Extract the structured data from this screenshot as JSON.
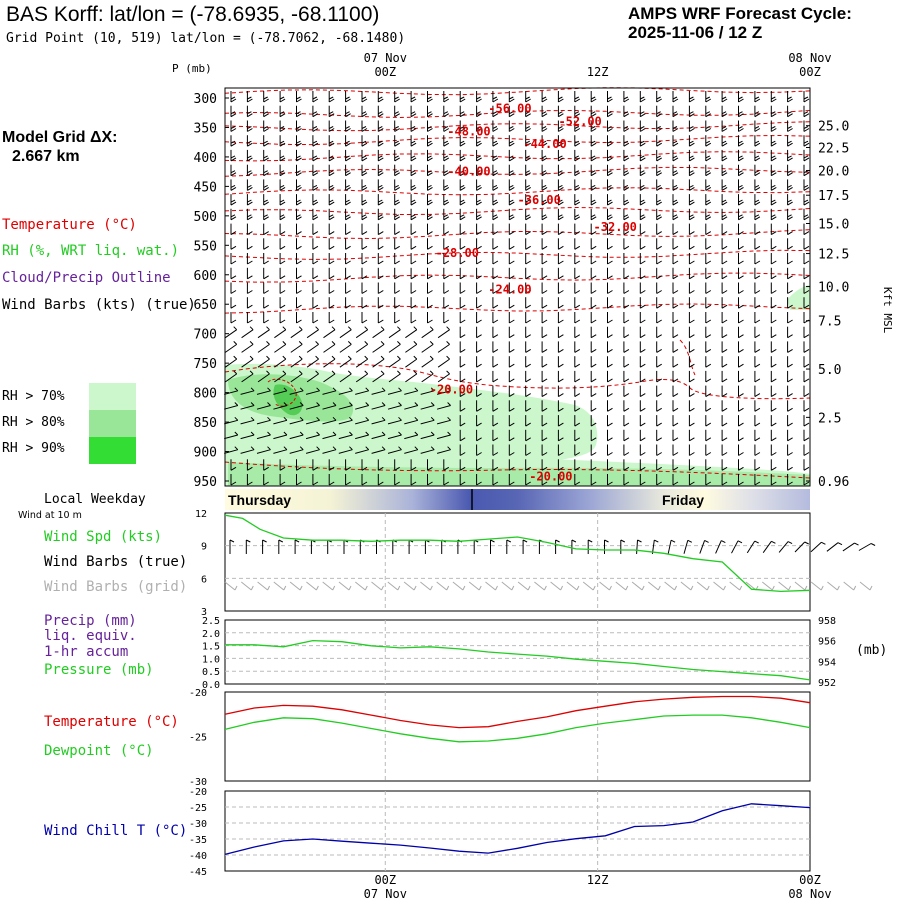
{
  "header": {
    "station_title": "BAS Korff:  lat/lon = (-78.6935, -68.1100)",
    "grid_point": "Grid Point (10, 519) lat/lon = (-78.7062, -68.1480)",
    "cycle_label": "AMPS WRF Forecast Cycle:",
    "cycle_value": "2025-11-06 / 12  Z",
    "model_grid_label": "Model Grid ΔX:",
    "model_grid_value": "2.667 km"
  },
  "time_axis": {
    "ticks": [
      {
        "top": "07 Nov",
        "bottom": "00Z",
        "frac": 0.274
      },
      {
        "top": "",
        "bottom": "12Z",
        "frac": 0.637
      },
      {
        "top": "08 Nov",
        "bottom": "00Z",
        "frac": 1.0
      }
    ],
    "day_labels": [
      "Thursday",
      "Friday"
    ],
    "local_weekday_label": "Local Weekday",
    "wind_height_label": "Wind at 10 m"
  },
  "sounding": {
    "pressure_axis_label": "P (mb)",
    "height_axis_label": "Kft MSL",
    "pressure_ticks": [
      300,
      350,
      400,
      450,
      500,
      550,
      600,
      650,
      700,
      750,
      800,
      850,
      900,
      950
    ],
    "height_ticks": [
      {
        "label": "25.0",
        "p": 347
      },
      {
        "label": "22.5",
        "p": 384
      },
      {
        "label": "20.0",
        "p": 423
      },
      {
        "label": "17.5",
        "p": 465
      },
      {
        "label": "15.0",
        "p": 513
      },
      {
        "label": "12.5",
        "p": 564
      },
      {
        "label": "10.0",
        "p": 620
      },
      {
        "label": "7.5",
        "p": 678
      },
      {
        "label": "5.0",
        "p": 760
      },
      {
        "label": "2.5",
        "p": 842
      },
      {
        "label": "0.96",
        "p": 950
      }
    ],
    "legend": {
      "temperature": "Temperature (°C)",
      "rh": "RH (%, WRT liq. wat.)",
      "cloud": "Cloud/Precip Outline",
      "wind": "Wind Barbs (kts) (true)"
    },
    "rh_legend": [
      {
        "label": "RH > 70%",
        "color": "#ccf7cc"
      },
      {
        "label": "RH > 80%",
        "color": "#99e699"
      },
      {
        "label": "RH > 90%",
        "color": "#33dd33"
      }
    ],
    "temperature_labels": [
      {
        "text": "-56.00",
        "frac": 0.45,
        "p": 318
      },
      {
        "text": "-52.00",
        "frac": 0.57,
        "p": 340
      },
      {
        "text": "-48.00",
        "frac": 0.38,
        "p": 357
      },
      {
        "text": "-44.00",
        "frac": 0.51,
        "p": 378
      },
      {
        "text": "-40.00",
        "frac": 0.38,
        "p": 425
      },
      {
        "text": "-36.00",
        "frac": 0.5,
        "p": 473
      },
      {
        "text": "-32.00",
        "frac": 0.63,
        "p": 519
      },
      {
        "text": "-28.00",
        "frac": 0.36,
        "p": 563
      },
      {
        "text": "-24.00",
        "frac": 0.45,
        "p": 625
      },
      {
        "text": "-20.00",
        "frac": 0.35,
        "p": 795
      },
      {
        "text": "-20.00",
        "frac": 0.52,
        "p": 942
      }
    ]
  },
  "panels": {
    "wind": {
      "legend_speed": "Wind Spd (kts)",
      "legend_barbs": "Wind Barbs (true)",
      "legend_grid": "Wind Barbs (grid)",
      "y_ticks": [
        "12",
        "9",
        "6",
        "3"
      ]
    },
    "precip": {
      "legend_precip": "Precip (mm)",
      "legend_liq": "liq. equiv.",
      "legend_accum": "1-hr accum",
      "legend_pressure": "Pressure (mb)",
      "y_ticks": [
        "2.5",
        "2.0",
        "1.5",
        "1.0",
        "0.5",
        "0.0"
      ],
      "right_ticks": [
        "958",
        "956",
        "954",
        "952"
      ],
      "right_unit": "(mb)"
    },
    "temp": {
      "legend_temp": "Temperature (°C)",
      "legend_dew": "Dewpoint (°C)",
      "y_ticks": [
        "-20",
        "-25",
        "-30"
      ]
    },
    "chill": {
      "legend": "Wind Chill T (°C)",
      "y_ticks": [
        "-20",
        "-25",
        "-30",
        "-35",
        "-40",
        "-45"
      ]
    }
  },
  "colors": {
    "temperature": "#dd0000",
    "dewpoint": "#22cc22",
    "wind_speed": "#22cc22",
    "pressure": "#22cc22",
    "cloud": "#662299",
    "wind_chill": "#0000aa",
    "grid_barbs": "#aaaaaa"
  },
  "chart_data": [
    {
      "type": "line",
      "name": "wind-speed",
      "x_frac": [
        0.0,
        0.03,
        0.06,
        0.1,
        0.15,
        0.2,
        0.25,
        0.3,
        0.35,
        0.4,
        0.45,
        0.5,
        0.55,
        0.6,
        0.65,
        0.7,
        0.75,
        0.8,
        0.85,
        0.9,
        0.95,
        1.0
      ],
      "values": [
        11.8,
        11.5,
        10.5,
        9.7,
        9.5,
        9.5,
        9.4,
        9.5,
        9.5,
        9.4,
        9.6,
        9.8,
        9.3,
        8.7,
        8.6,
        8.6,
        8.3,
        7.8,
        7.5,
        5.0,
        4.8,
        4.9
      ],
      "ylim": [
        3,
        12
      ]
    },
    {
      "type": "line",
      "name": "pressure",
      "x_frac": [
        0.0,
        0.05,
        0.1,
        0.15,
        0.2,
        0.25,
        0.3,
        0.35,
        0.4,
        0.45,
        0.5,
        0.55,
        0.6,
        0.65,
        0.7,
        0.75,
        0.8,
        0.85,
        0.9,
        0.95,
        1.0
      ],
      "values": [
        955.6,
        955.6,
        955.4,
        956.0,
        955.9,
        955.5,
        955.3,
        955.4,
        955.2,
        954.9,
        954.7,
        954.5,
        954.2,
        954.0,
        953.8,
        953.5,
        953.2,
        953.0,
        952.8,
        952.6,
        952.2
      ],
      "ylim": [
        951.8,
        958
      ]
    },
    {
      "type": "line",
      "name": "temperature",
      "x_frac": [
        0.0,
        0.05,
        0.1,
        0.15,
        0.2,
        0.25,
        0.3,
        0.35,
        0.4,
        0.45,
        0.5,
        0.55,
        0.6,
        0.65,
        0.7,
        0.75,
        0.8,
        0.85,
        0.9,
        0.95,
        1.0
      ],
      "values": [
        -22.5,
        -21.8,
        -21.5,
        -21.6,
        -22.0,
        -22.6,
        -23.2,
        -23.7,
        -24.0,
        -23.9,
        -23.3,
        -22.8,
        -22.1,
        -21.6,
        -21.1,
        -20.8,
        -20.6,
        -20.5,
        -20.5,
        -20.7,
        -21.2
      ],
      "ylim": [
        -30,
        -20
      ]
    },
    {
      "type": "line",
      "name": "dewpoint",
      "x_frac": [
        0.0,
        0.05,
        0.1,
        0.15,
        0.2,
        0.25,
        0.3,
        0.35,
        0.4,
        0.45,
        0.5,
        0.55,
        0.6,
        0.65,
        0.7,
        0.75,
        0.8,
        0.85,
        0.9,
        0.95,
        1.0
      ],
      "values": [
        -24.2,
        -23.4,
        -22.9,
        -23.0,
        -23.5,
        -24.1,
        -24.7,
        -25.2,
        -25.6,
        -25.5,
        -25.2,
        -24.7,
        -24.0,
        -23.5,
        -23.1,
        -22.7,
        -22.6,
        -22.6,
        -22.9,
        -23.4,
        -24.0
      ],
      "ylim": [
        -30,
        -20
      ]
    },
    {
      "type": "line",
      "name": "wind-chill",
      "x_frac": [
        0.0,
        0.05,
        0.1,
        0.15,
        0.2,
        0.25,
        0.3,
        0.35,
        0.4,
        0.45,
        0.5,
        0.55,
        0.6,
        0.65,
        0.7,
        0.75,
        0.8,
        0.85,
        0.9,
        0.95,
        1.0
      ],
      "values": [
        -39.8,
        -37.5,
        -35.6,
        -35.0,
        -35.7,
        -36.3,
        -36.9,
        -37.8,
        -38.8,
        -39.4,
        -37.9,
        -36.1,
        -34.9,
        -34.0,
        -31.1,
        -30.8,
        -29.7,
        -26.2,
        -24.0,
        -24.6,
        -25.2
      ],
      "ylim": [
        -45,
        -20
      ]
    }
  ]
}
